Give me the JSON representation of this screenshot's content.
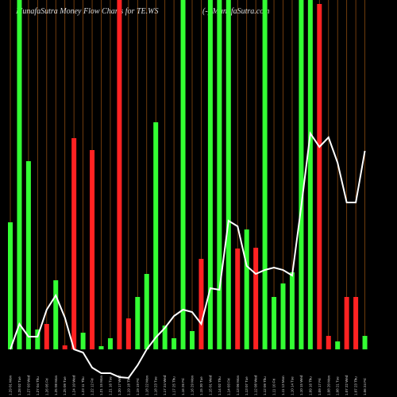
{
  "chart_data": {
    "type": "bar_line",
    "title": "MunafaSutra  Money Flow  Charts for TE.WS",
    "subtitle": "(-) MunafaSutra.com",
    "categories": [
      "1.29 01 Mon",
      "1.28 02 Tue",
      "1.27 03 Wed",
      "1.27 04 Thu",
      "1.26 05 Fri",
      "1.25 08 Mon",
      "1.25 09 Tue",
      "1.24 10 Wed",
      "1.23 11 Thu",
      "1.22 12 Fri",
      "1.21 15 Mon",
      "1.21 16 Tue",
      "1.20 17 Wed",
      "1.19 18 Thu",
      "1.19 19 Fri",
      "1.18 22 Mon",
      "1.18 23 Tue",
      "1.17 24 Wed",
      "1.17 25 Thu",
      "1.16 26 Fri",
      "1.16 29 Mon",
      "1.15 30 Tue",
      "1.15 01 Wed",
      "1.14 02 Thu",
      "1.14 03 Fri",
      "1.13 06 Mon",
      "1.13 07 Tue",
      "1.12 08 Wed",
      "1.12 09 Thu",
      "1.11 10 Fri",
      "1.11 13 Mon",
      "1.10 14 Tue",
      "1.10 15 Wed",
      "1.09 16 Thu",
      "1.09 17 Fri",
      "1.08 20 Mon",
      "1.08 21 Tue",
      "1.07 22 Wed",
      "1.07 23 Thu",
      "1.06 24 Fri"
    ],
    "bar_values": [
      160,
      440,
      237,
      25,
      32,
      87,
      5,
      266,
      21,
      251,
      4,
      14,
      440,
      39,
      66,
      95,
      286,
      30,
      14,
      440,
      23,
      114,
      440,
      440,
      440,
      127,
      151,
      128,
      440,
      66,
      83,
      97,
      440,
      440,
      435,
      17,
      10,
      66,
      66,
      17
    ],
    "bar_colors": [
      "#33ff33",
      "#33ff33",
      "#33ff33",
      "#33ff33",
      "#ff2222",
      "#33ff33",
      "#ff2222",
      "#ff2222",
      "#33ff33",
      "#ff2222",
      "#33ff33",
      "#33ff33",
      "#ff2222",
      "#ff2222",
      "#33ff33",
      "#33ff33",
      "#33ff33",
      "#33ff33",
      "#33ff33",
      "#33ff33",
      "#33ff33",
      "#ff2222",
      "#33ff33",
      "#33ff33",
      "#33ff33",
      "#ff2222",
      "#33ff33",
      "#ff2222",
      "#33ff33",
      "#33ff33",
      "#33ff33",
      "#33ff33",
      "#33ff33",
      "#33ff33",
      "#ff2222",
      "#ff2222",
      "#33ff33",
      "#ff2222",
      "#ff2222",
      "#33ff33"
    ],
    "line_values": [
      0,
      32,
      16,
      16,
      50,
      68,
      40,
      0,
      -4,
      -23,
      -30,
      -30,
      -35,
      -36,
      -20,
      0,
      15,
      27,
      42,
      50,
      47,
      32,
      77,
      75,
      162,
      155,
      105,
      95,
      100,
      103,
      100,
      93,
      180,
      272,
      255,
      267,
      235,
      185,
      185,
      250
    ],
    "line_color": "#ffffff",
    "grid_color": "#8b4a10",
    "ylim": [
      -40,
      440
    ]
  }
}
